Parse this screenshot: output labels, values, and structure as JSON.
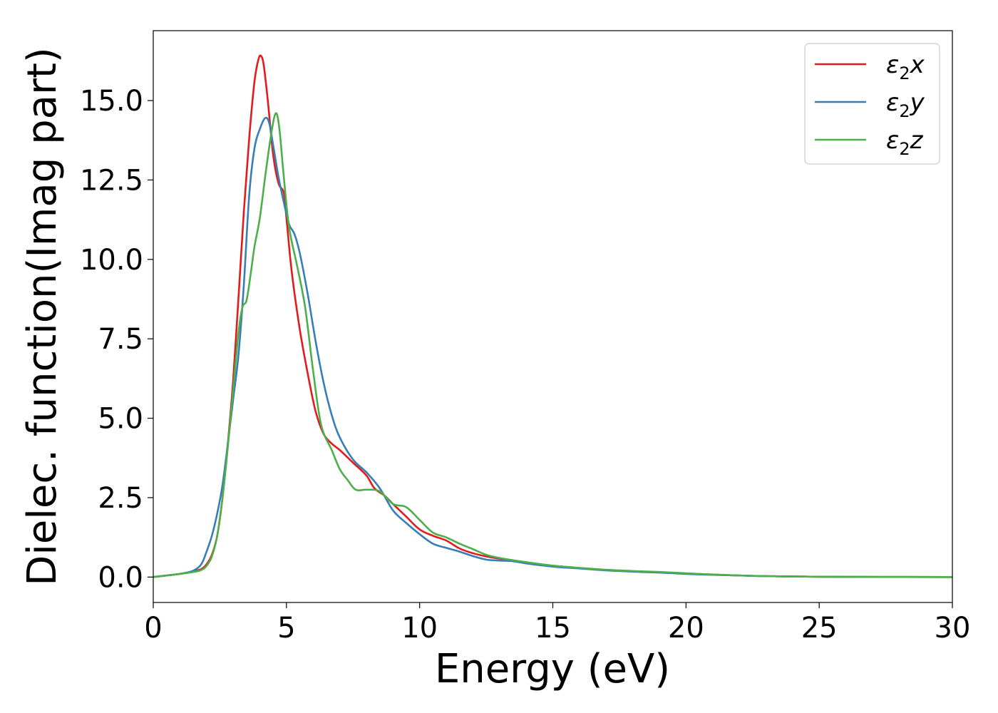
{
  "chart_data": {
    "type": "line",
    "title": "",
    "xlabel": "Energy (eV)",
    "ylabel": "Dielec. function(Imag part)",
    "xlim": [
      0,
      30
    ],
    "ylim": [
      -0.8,
      17.2
    ],
    "xticks": [
      "0",
      "5",
      "10",
      "15",
      "20",
      "25",
      "30"
    ],
    "yticks": [
      "0.0",
      "2.5",
      "5.0",
      "7.5",
      "10.0",
      "12.5",
      "15.0"
    ],
    "grid": false,
    "legend_position": "top-right",
    "series": [
      {
        "name": "ε₂x",
        "legend": {
          "base": "ε",
          "sub": "2",
          "suffix": "x"
        },
        "color": "#e41a1c",
        "points": [
          [
            0,
            0
          ],
          [
            0.5,
            0.05
          ],
          [
            1.0,
            0.1
          ],
          [
            1.5,
            0.18
          ],
          [
            1.8,
            0.25
          ],
          [
            2.0,
            0.4
          ],
          [
            2.2,
            0.7
          ],
          [
            2.4,
            1.3
          ],
          [
            2.6,
            2.5
          ],
          [
            2.8,
            4.2
          ],
          [
            3.0,
            6.2
          ],
          [
            3.2,
            8.8
          ],
          [
            3.4,
            11.5
          ],
          [
            3.6,
            13.8
          ],
          [
            3.8,
            15.6
          ],
          [
            3.95,
            16.3
          ],
          [
            4.05,
            16.4
          ],
          [
            4.15,
            16.1
          ],
          [
            4.3,
            15.0
          ],
          [
            4.5,
            13.3
          ],
          [
            4.7,
            12.4
          ],
          [
            4.9,
            12.1
          ],
          [
            5.0,
            11.3
          ],
          [
            5.2,
            9.6
          ],
          [
            5.5,
            7.8
          ],
          [
            5.8,
            6.4
          ],
          [
            6.1,
            5.2
          ],
          [
            6.4,
            4.5
          ],
          [
            6.7,
            4.2
          ],
          [
            7.0,
            4.0
          ],
          [
            7.5,
            3.6
          ],
          [
            8.0,
            3.2
          ],
          [
            8.3,
            2.8
          ],
          [
            8.7,
            2.55
          ],
          [
            9.0,
            2.3
          ],
          [
            9.5,
            1.9
          ],
          [
            10.0,
            1.5
          ],
          [
            10.5,
            1.3
          ],
          [
            11.0,
            1.15
          ],
          [
            11.5,
            0.9
          ],
          [
            12.0,
            0.75
          ],
          [
            12.5,
            0.65
          ],
          [
            13.0,
            0.58
          ],
          [
            14.0,
            0.45
          ],
          [
            15.0,
            0.35
          ],
          [
            16.0,
            0.28
          ],
          [
            17.0,
            0.22
          ],
          [
            18.0,
            0.18
          ],
          [
            19.0,
            0.15
          ],
          [
            20.0,
            0.11
          ],
          [
            21.0,
            0.08
          ],
          [
            22.0,
            0.05
          ],
          [
            23.0,
            0.03
          ],
          [
            25.0,
            0.01
          ],
          [
            30.0,
            0.0
          ]
        ]
      },
      {
        "name": "ε₂y",
        "legend": {
          "base": "ε",
          "sub": "2",
          "suffix": "y"
        },
        "color": "#377eb8",
        "points": [
          [
            0,
            0
          ],
          [
            0.5,
            0.05
          ],
          [
            1.0,
            0.1
          ],
          [
            1.5,
            0.2
          ],
          [
            1.8,
            0.4
          ],
          [
            2.0,
            0.8
          ],
          [
            2.2,
            1.3
          ],
          [
            2.4,
            2.0
          ],
          [
            2.6,
            2.9
          ],
          [
            2.8,
            4.2
          ],
          [
            3.0,
            5.6
          ],
          [
            3.2,
            7.0
          ],
          [
            3.4,
            9.2
          ],
          [
            3.6,
            12.0
          ],
          [
            3.8,
            13.5
          ],
          [
            4.0,
            14.1
          ],
          [
            4.2,
            14.45
          ],
          [
            4.35,
            14.3
          ],
          [
            4.5,
            13.6
          ],
          [
            4.7,
            12.6
          ],
          [
            4.9,
            11.8
          ],
          [
            5.1,
            11.1
          ],
          [
            5.3,
            10.8
          ],
          [
            5.5,
            10.2
          ],
          [
            5.8,
            8.9
          ],
          [
            6.1,
            7.4
          ],
          [
            6.4,
            6.1
          ],
          [
            6.7,
            5.1
          ],
          [
            7.0,
            4.4
          ],
          [
            7.5,
            3.7
          ],
          [
            8.0,
            3.3
          ],
          [
            8.5,
            2.8
          ],
          [
            9.0,
            2.1
          ],
          [
            9.5,
            1.7
          ],
          [
            10.0,
            1.35
          ],
          [
            10.5,
            1.05
          ],
          [
            11.0,
            0.92
          ],
          [
            11.5,
            0.8
          ],
          [
            12.0,
            0.66
          ],
          [
            12.5,
            0.55
          ],
          [
            13.0,
            0.52
          ],
          [
            13.5,
            0.5
          ],
          [
            14.0,
            0.43
          ],
          [
            15.0,
            0.33
          ],
          [
            16.0,
            0.27
          ],
          [
            17.0,
            0.21
          ],
          [
            18.0,
            0.17
          ],
          [
            19.0,
            0.14
          ],
          [
            20.0,
            0.1
          ],
          [
            21.0,
            0.07
          ],
          [
            22.0,
            0.05
          ],
          [
            23.0,
            0.03
          ],
          [
            25.0,
            0.01
          ],
          [
            30.0,
            0.0
          ]
        ]
      },
      {
        "name": "ε₂z",
        "legend": {
          "base": "ε",
          "sub": "2",
          "suffix": "z"
        },
        "color": "#4daf4a",
        "points": [
          [
            0,
            0
          ],
          [
            0.5,
            0.05
          ],
          [
            1.0,
            0.1
          ],
          [
            1.5,
            0.16
          ],
          [
            1.8,
            0.22
          ],
          [
            2.0,
            0.35
          ],
          [
            2.2,
            0.65
          ],
          [
            2.4,
            1.3
          ],
          [
            2.6,
            2.5
          ],
          [
            2.8,
            4.1
          ],
          [
            3.0,
            5.9
          ],
          [
            3.2,
            7.7
          ],
          [
            3.35,
            8.5
          ],
          [
            3.5,
            8.7
          ],
          [
            3.65,
            9.5
          ],
          [
            3.8,
            10.4
          ],
          [
            4.0,
            11.3
          ],
          [
            4.2,
            12.6
          ],
          [
            4.4,
            13.8
          ],
          [
            4.55,
            14.5
          ],
          [
            4.65,
            14.55
          ],
          [
            4.75,
            14.0
          ],
          [
            4.9,
            12.6
          ],
          [
            5.1,
            11.0
          ],
          [
            5.4,
            9.8
          ],
          [
            5.7,
            8.5
          ],
          [
            6.0,
            6.5
          ],
          [
            6.3,
            4.8
          ],
          [
            6.7,
            4.0
          ],
          [
            7.0,
            3.4
          ],
          [
            7.3,
            3.05
          ],
          [
            7.6,
            2.75
          ],
          [
            8.0,
            2.75
          ],
          [
            8.5,
            2.7
          ],
          [
            9.0,
            2.3
          ],
          [
            9.5,
            2.2
          ],
          [
            10.0,
            1.8
          ],
          [
            10.5,
            1.4
          ],
          [
            11.0,
            1.25
          ],
          [
            11.5,
            1.05
          ],
          [
            12.0,
            0.88
          ],
          [
            12.5,
            0.7
          ],
          [
            13.0,
            0.6
          ],
          [
            14.0,
            0.47
          ],
          [
            15.0,
            0.36
          ],
          [
            16.0,
            0.29
          ],
          [
            17.0,
            0.23
          ],
          [
            18.0,
            0.19
          ],
          [
            19.0,
            0.16
          ],
          [
            20.0,
            0.12
          ],
          [
            21.0,
            0.08
          ],
          [
            22.0,
            0.05
          ],
          [
            23.0,
            0.03
          ],
          [
            25.0,
            0.01
          ],
          [
            30.0,
            0.0
          ]
        ]
      }
    ]
  }
}
